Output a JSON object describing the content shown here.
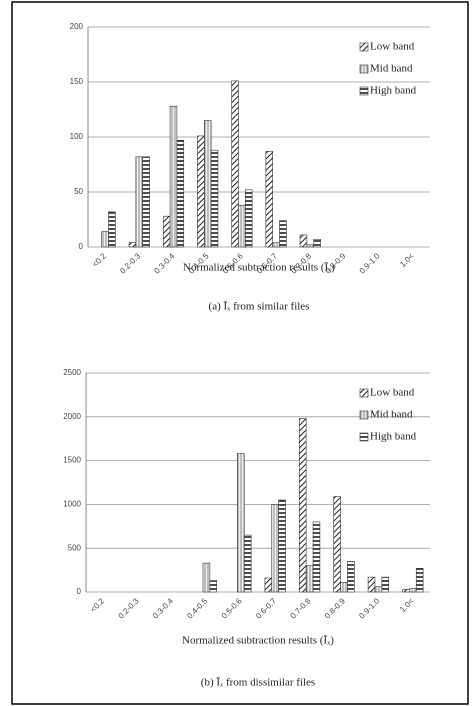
{
  "chart_data": [
    {
      "type": "bar",
      "caption": "(a) Īₓ from similar files",
      "xlabel": "Normalized subtraction results (Īₓ)",
      "categories": [
        "<0.2",
        "0.2-0.3",
        "0.3-0.4",
        "0.4-0.5",
        "0.5-0.6",
        "0.6-0.7",
        "0.7-0.8",
        "0.8-0.9",
        "0.9-1.0",
        "1.0<"
      ],
      "series": [
        {
          "name": "Low band",
          "color": "#333333",
          "pattern": "diagonal",
          "values": [
            0,
            4,
            28,
            101,
            151,
            87,
            11,
            0,
            0,
            0
          ]
        },
        {
          "name": "Mid band",
          "color": "#333333",
          "pattern": "vertical",
          "values": [
            14,
            82,
            128,
            115,
            38,
            4,
            2,
            0,
            0,
            0
          ]
        },
        {
          "name": "High band",
          "color": "#333333",
          "pattern": "horizontal",
          "values": [
            32,
            82,
            97,
            88,
            52,
            24,
            7,
            0,
            0,
            0
          ]
        }
      ],
      "ylim": [
        0,
        200
      ],
      "yticks": [
        0,
        50,
        100,
        150,
        200
      ],
      "grid": true,
      "legend": "upper right"
    },
    {
      "type": "bar",
      "caption": "(b) Īₓ from dissimilar files",
      "xlabel": "Normalized subtraction results (Īₓ)",
      "categories": [
        "<0.2",
        "0.2-0.3",
        "0.3-0.4",
        "0.4-0.5",
        "0.5-0.6",
        "0.6-0.7",
        "0.7-0.8",
        "0.8-0.9",
        "0.9-1.0",
        "1.0<"
      ],
      "series": [
        {
          "name": "Low band",
          "color": "#333333",
          "pattern": "diagonal",
          "values": [
            0,
            0,
            0,
            0,
            0,
            160,
            1980,
            1090,
            170,
            30
          ]
        },
        {
          "name": "Mid band",
          "color": "#333333",
          "pattern": "vertical",
          "values": [
            0,
            0,
            0,
            330,
            1580,
            1000,
            300,
            110,
            60,
            40
          ]
        },
        {
          "name": "High band",
          "color": "#333333",
          "pattern": "horizontal",
          "values": [
            0,
            0,
            0,
            130,
            650,
            1050,
            800,
            350,
            170,
            270
          ]
        }
      ],
      "ylim": [
        0,
        2500
      ],
      "yticks": [
        0,
        500,
        1000,
        1500,
        2000,
        2500
      ],
      "grid": true,
      "legend": "upper right"
    }
  ]
}
